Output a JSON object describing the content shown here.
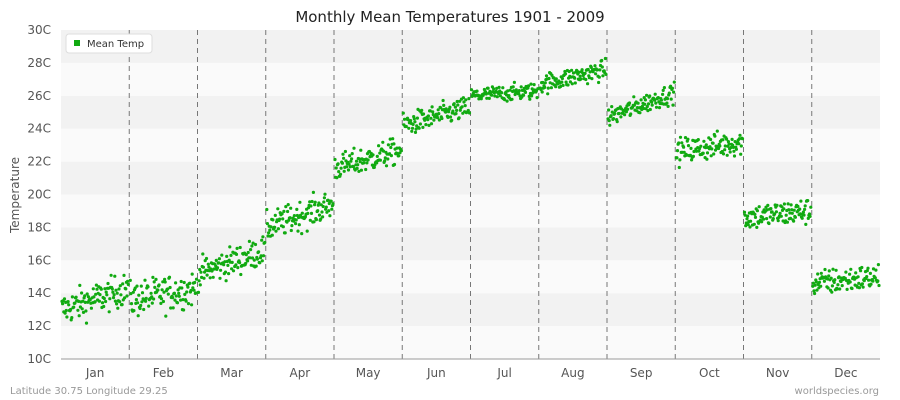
{
  "chart_data": {
    "type": "scatter",
    "title": "Monthly Mean Temperatures 1901 - 2009",
    "xlabel": "",
    "ylabel": "Temperature",
    "categories": [
      "Jan",
      "Feb",
      "Mar",
      "Apr",
      "May",
      "Jun",
      "Jul",
      "Aug",
      "Sep",
      "Oct",
      "Nov",
      "Dec"
    ],
    "ylim": [
      10,
      30
    ],
    "yticks": [
      10,
      12,
      14,
      16,
      18,
      20,
      22,
      24,
      26,
      28,
      30
    ],
    "ytick_labels": [
      "10C",
      "12C",
      "14C",
      "16C",
      "18C",
      "20C",
      "22C",
      "24C",
      "26C",
      "28C",
      "30C"
    ],
    "legend": {
      "position": "top-left",
      "entries": [
        {
          "name": "Mean Temp",
          "color": "#11aa11"
        }
      ]
    },
    "series": [
      {
        "name": "Mean Temp",
        "color": "#11aa11",
        "months": [
          {
            "month": "Jan",
            "start": 13.0,
            "end": 14.3,
            "spread": 1.0,
            "values": []
          },
          {
            "month": "Feb",
            "start": 13.6,
            "end": 14.3,
            "spread": 1.1,
            "values": []
          },
          {
            "month": "Mar",
            "start": 15.2,
            "end": 16.6,
            "spread": 0.9,
            "values": []
          },
          {
            "month": "Apr",
            "start": 18.0,
            "end": 19.4,
            "spread": 0.9,
            "values": []
          },
          {
            "month": "May",
            "start": 21.6,
            "end": 22.7,
            "spread": 0.8,
            "values": []
          },
          {
            "month": "Jun",
            "start": 24.2,
            "end": 25.3,
            "spread": 0.7,
            "values": []
          },
          {
            "month": "Jul",
            "start": 26.0,
            "end": 26.3,
            "spread": 0.5,
            "values": []
          },
          {
            "month": "Aug",
            "start": 26.7,
            "end": 27.6,
            "spread": 0.6,
            "values": []
          },
          {
            "month": "Sep",
            "start": 24.7,
            "end": 26.2,
            "spread": 0.6,
            "values": []
          },
          {
            "month": "Oct",
            "start": 22.6,
            "end": 23.2,
            "spread": 0.8,
            "values": []
          },
          {
            "month": "Nov",
            "start": 18.6,
            "end": 19.0,
            "spread": 0.8,
            "values": []
          },
          {
            "month": "Dec",
            "start": 14.6,
            "end": 15.0,
            "spread": 0.8,
            "values": []
          }
        ]
      }
    ],
    "grid": true
  },
  "footer": {
    "left": "Latitude 30.75 Longitude 29.25",
    "right": "worldspecies.org"
  },
  "colors": {
    "band_light": "#fafafa",
    "band_dark": "#f2f2f2",
    "point": "#11aa11",
    "divider": "#777777"
  }
}
